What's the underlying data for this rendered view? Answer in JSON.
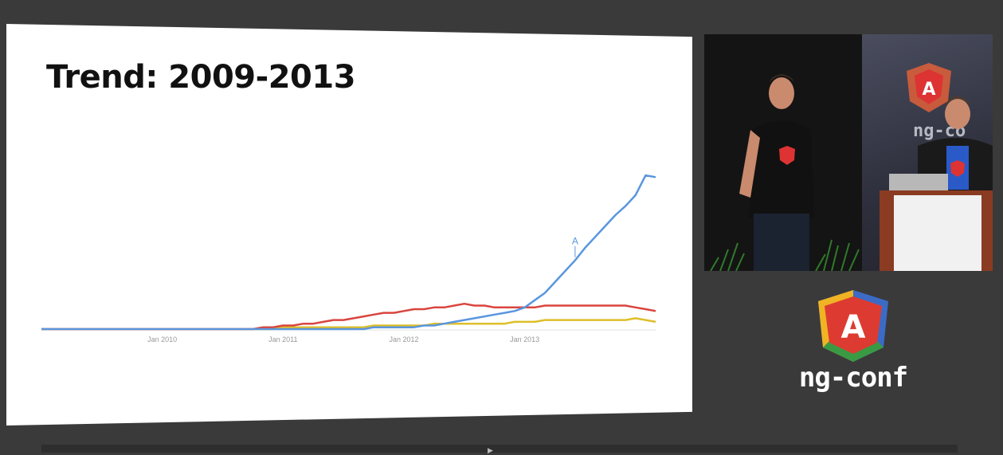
{
  "slide": {
    "title": "Trend: 2009-2013"
  },
  "chart_data": {
    "type": "line",
    "x": [
      "2009-01",
      "2009-02",
      "2009-03",
      "2009-04",
      "2009-05",
      "2009-06",
      "2009-07",
      "2009-08",
      "2009-09",
      "2009-10",
      "2009-11",
      "2009-12",
      "2010-01",
      "2010-02",
      "2010-03",
      "2010-04",
      "2010-05",
      "2010-06",
      "2010-07",
      "2010-08",
      "2010-09",
      "2010-10",
      "2010-11",
      "2010-12",
      "2011-01",
      "2011-02",
      "2011-03",
      "2011-04",
      "2011-05",
      "2011-06",
      "2011-07",
      "2011-08",
      "2011-09",
      "2011-10",
      "2011-11",
      "2011-12",
      "2012-01",
      "2012-02",
      "2012-03",
      "2012-04",
      "2012-05",
      "2012-06",
      "2012-07",
      "2012-08",
      "2012-09",
      "2012-10",
      "2012-11",
      "2012-12",
      "2013-01",
      "2013-02",
      "2013-03",
      "2013-04",
      "2013-05",
      "2013-06",
      "2013-07",
      "2013-08",
      "2013-09",
      "2013-10",
      "2013-11",
      "2013-12",
      "2014-01",
      "2014-02"
    ],
    "tick_labels": [
      {
        "x": "2010-01",
        "label": "Jan 2010"
      },
      {
        "x": "2011-01",
        "label": "Jan 2011"
      },
      {
        "x": "2012-01",
        "label": "Jan 2012"
      },
      {
        "x": "2013-01",
        "label": "Jan 2013"
      }
    ],
    "ylim": [
      0,
      100
    ],
    "grid": false,
    "series": [
      {
        "color": "#ddbf2a",
        "values": [
          0,
          0,
          0,
          0,
          0,
          0,
          0,
          0,
          0,
          0,
          0,
          0,
          0,
          0,
          0,
          0,
          0,
          0,
          0,
          0,
          0,
          0,
          0,
          0,
          1,
          1,
          1,
          1,
          1,
          1,
          1,
          1,
          1,
          2,
          2,
          2,
          2,
          2,
          2,
          3,
          3,
          3,
          3,
          3,
          3,
          3,
          3,
          4,
          4,
          4,
          5,
          5,
          5,
          5,
          5,
          5,
          5,
          5,
          5,
          6,
          5,
          4
        ]
      },
      {
        "color": "#d9453f",
        "values": [
          0,
          0,
          0,
          0,
          0,
          0,
          0,
          0,
          0,
          0,
          0,
          0,
          0,
          0,
          0,
          0,
          0,
          0,
          0,
          0,
          0,
          0,
          1,
          1,
          2,
          2,
          3,
          3,
          4,
          5,
          5,
          6,
          7,
          8,
          9,
          9,
          10,
          11,
          11,
          12,
          12,
          13,
          14,
          13,
          13,
          12,
          12,
          12,
          12,
          12,
          13,
          13,
          13,
          13,
          13,
          13,
          13,
          13,
          13,
          12,
          11,
          10
        ]
      },
      {
        "color": "#5a96de",
        "values": [
          0,
          0,
          0,
          0,
          0,
          0,
          0,
          0,
          0,
          0,
          0,
          0,
          0,
          0,
          0,
          0,
          0,
          0,
          0,
          0,
          0,
          0,
          0,
          0,
          0,
          0,
          0,
          0,
          0,
          0,
          0,
          0,
          0,
          1,
          1,
          1,
          1,
          1,
          2,
          2,
          3,
          4,
          5,
          6,
          7,
          8,
          9,
          10,
          12,
          16,
          20,
          26,
          32,
          38,
          45,
          51,
          57,
          63,
          68,
          74,
          85,
          84
        ]
      }
    ],
    "annotations": [
      {
        "x": "2013-06",
        "label": "A"
      }
    ]
  },
  "brand": {
    "logo_letter": "A",
    "name": "ng-conf"
  },
  "colors": {
    "background": "#3a3a3a",
    "slide": "#ffffff",
    "shield_red": "#dd3b31",
    "shield_yellow": "#f0b323",
    "shield_green": "#3a9a44",
    "shield_blue": "#3b6bc5"
  },
  "icons": [
    "angular-shield-icon",
    "play-icon"
  ]
}
